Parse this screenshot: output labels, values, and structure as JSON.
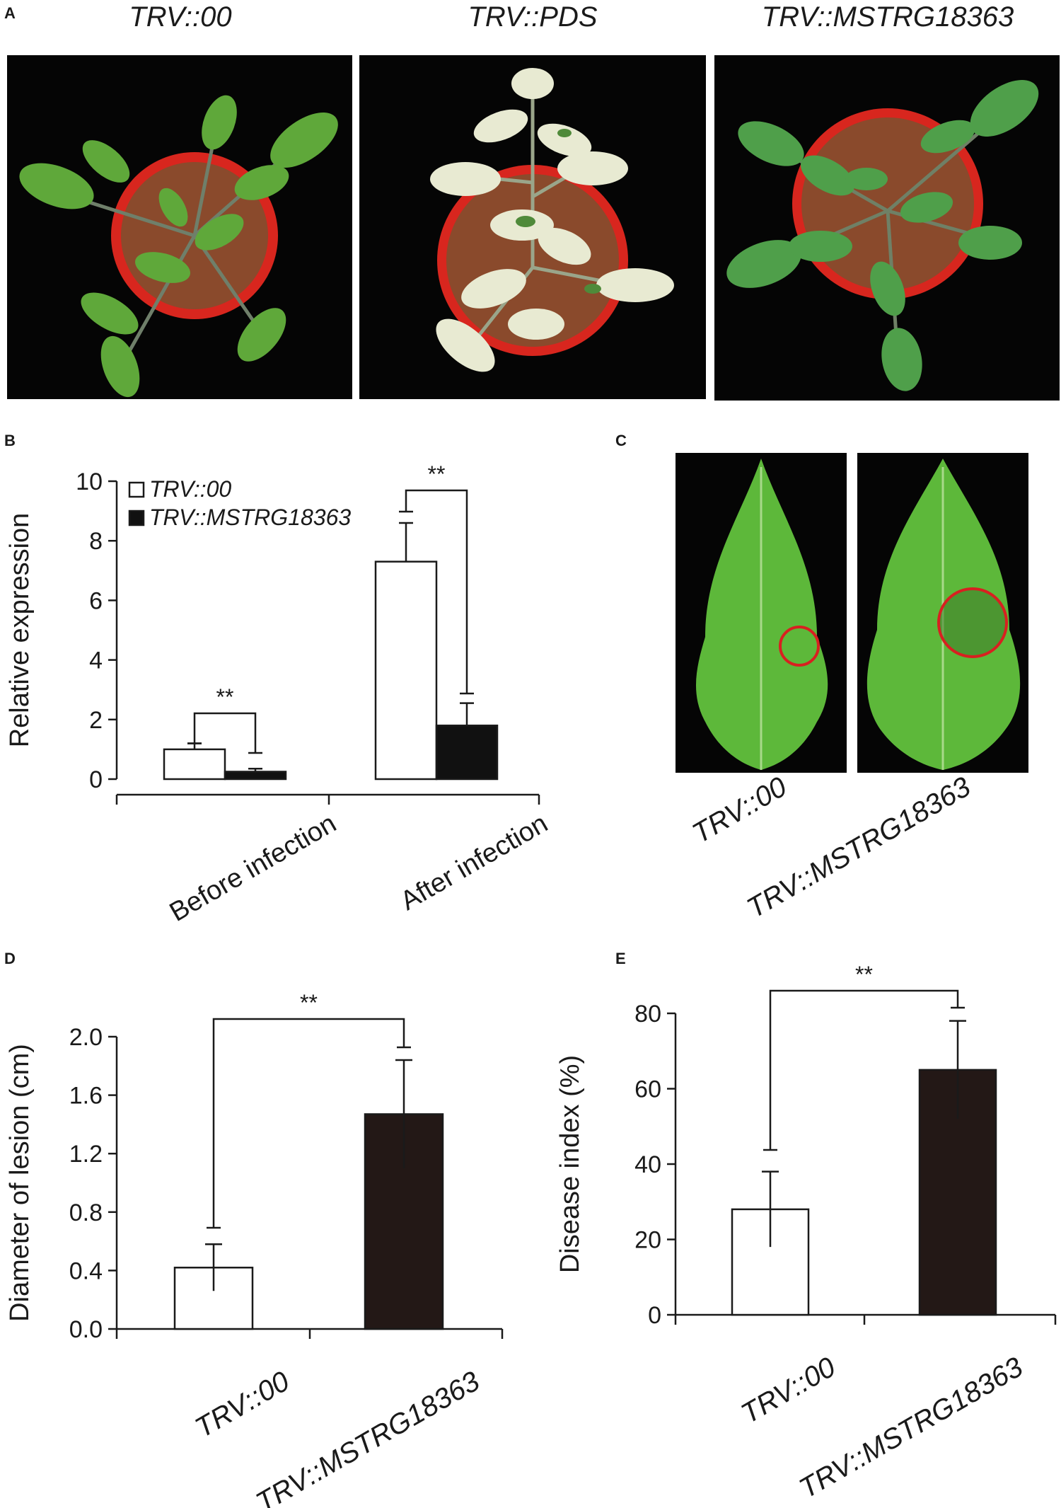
{
  "panel_labels": {
    "a": "A",
    "b": "B",
    "c": "C",
    "d": "D",
    "e": "E"
  },
  "panel_a": {
    "titles": [
      "TRV::00",
      "TRV::PDS",
      "TRV::MSTRG18363"
    ],
    "photos": [
      {
        "subject": "tomato-plant-green",
        "leaf_color": "#5fa83a"
      },
      {
        "subject": "tomato-plant-bleached",
        "leaf_color": "#e8ead2"
      },
      {
        "subject": "tomato-plant-green",
        "leaf_color": "#4f9f4a"
      }
    ],
    "pot_color": "#d8261e",
    "soil_color": "#8a4a2c"
  },
  "panel_c": {
    "xticklabels": [
      "TRV::00",
      "TRV::MSTRG18363"
    ],
    "leaf_color": "#5db83a",
    "lesion_ring_color": "#d82020"
  },
  "chart_data": [
    {
      "panel": "B",
      "type": "bar",
      "categories": [
        "Before infection",
        "After infection"
      ],
      "series": [
        {
          "name": "TRV::00",
          "values": [
            1.0,
            7.3
          ],
          "errors": [
            0.2,
            1.3
          ],
          "color": "#ffffff"
        },
        {
          "name": "TRV::MSTRG18363",
          "values": [
            0.25,
            1.8
          ],
          "errors": [
            0.1,
            0.75
          ],
          "color": "#111111"
        }
      ],
      "ylabel": "Relative expression",
      "ylim": [
        0,
        10
      ],
      "yticks": [
        0,
        2,
        4,
        6,
        8,
        10
      ],
      "significance": [
        "**",
        "**"
      ],
      "legend": "top-left",
      "grid": false
    },
    {
      "panel": "D",
      "type": "bar",
      "categories": [
        "TRV::00",
        "TRV::MSTRG18363"
      ],
      "values": [
        0.42,
        1.47
      ],
      "errors": [
        0.16,
        0.37
      ],
      "colors": [
        "#ffffff",
        "#231816"
      ],
      "ylabel": "Diameter of lesion (cm)",
      "ylim": [
        0,
        2.0
      ],
      "yticks": [
        "0.0",
        "0.4",
        "0.8",
        "1.2",
        "1.6",
        "2.0"
      ],
      "significance": "**",
      "grid": false
    },
    {
      "panel": "E",
      "type": "bar",
      "categories": [
        "TRV::00",
        "TRV::MSTRG18363"
      ],
      "values": [
        28,
        65
      ],
      "errors": [
        10,
        13
      ],
      "colors": [
        "#ffffff",
        "#231816"
      ],
      "ylabel": "Disease index (%)",
      "ylim": [
        0,
        80
      ],
      "yticks": [
        "0",
        "20",
        "40",
        "60",
        "80"
      ],
      "significance": "**",
      "grid": false
    }
  ]
}
